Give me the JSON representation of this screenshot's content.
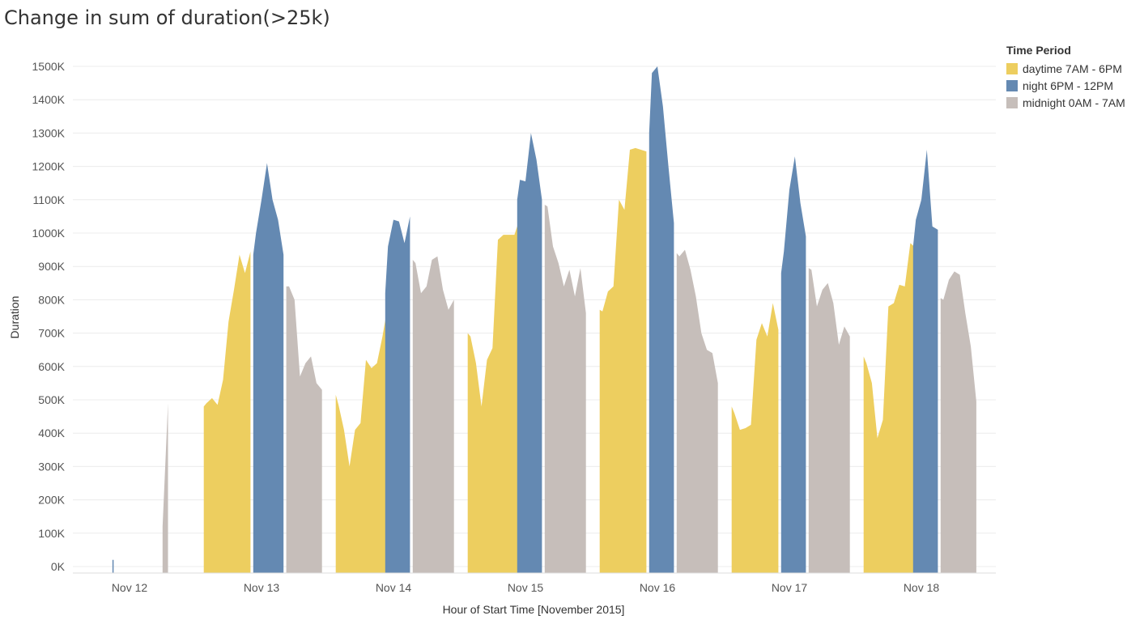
{
  "chart_data": {
    "type": "area",
    "title": "Change in sum of duration(>25k)",
    "xlabel": "Hour of Start Time [November 2015]",
    "ylabel": "Duration",
    "ylim": [
      0,
      1500000
    ],
    "yticks": [
      0,
      100000,
      200000,
      300000,
      400000,
      500000,
      600000,
      700000,
      800000,
      900000,
      1000000,
      1100000,
      1200000,
      1300000,
      1400000,
      1500000
    ],
    "ytick_labels": [
      "0K",
      "100K",
      "200K",
      "300K",
      "400K",
      "500K",
      "600K",
      "700K",
      "800K",
      "900K",
      "1000K",
      "1100K",
      "1200K",
      "1300K",
      "1400K",
      "1500K"
    ],
    "xticks": [
      "Nov 12",
      "Nov 13",
      "Nov 14",
      "Nov 15",
      "Nov 16",
      "Nov 17",
      "Nov 18"
    ],
    "x_unit": "hours since Nov 12 00:00",
    "grid": true,
    "legend_title": "Time Period",
    "legend_position": "top-right",
    "series": [
      {
        "name": "daytime 7AM - 6PM",
        "color": "#EDCE5F",
        "segments": [
          [
            [
              13.5,
              480000
            ],
            [
              14,
              490000
            ],
            [
              15,
              505000
            ],
            [
              16,
              485000
            ],
            [
              17,
              560000
            ],
            [
              18,
              735000
            ],
            [
              19,
              830000
            ],
            [
              20,
              935000
            ],
            [
              21,
              880000
            ],
            [
              22,
              945000
            ]
          ],
          [
            [
              37.5,
              515000
            ],
            [
              38,
              485000
            ],
            [
              39,
              410000
            ],
            [
              40,
              300000
            ],
            [
              41,
              410000
            ],
            [
              42,
              430000
            ],
            [
              43,
              620000
            ],
            [
              44,
              595000
            ],
            [
              45,
              610000
            ],
            [
              46,
              690000
            ],
            [
              47,
              785000
            ]
          ],
          [
            [
              61.5,
              700000
            ],
            [
              62,
              690000
            ],
            [
              63,
              610000
            ],
            [
              64,
              480000
            ],
            [
              65,
              620000
            ],
            [
              66,
              655000
            ],
            [
              67,
              980000
            ],
            [
              68,
              995000
            ],
            [
              69,
              995000
            ],
            [
              70,
              995000
            ],
            [
              71,
              1045000
            ]
          ],
          [
            [
              85.5,
              770000
            ],
            [
              86,
              765000
            ],
            [
              87,
              825000
            ],
            [
              88,
              840000
            ],
            [
              89,
              1100000
            ],
            [
              90,
              1070000
            ],
            [
              91,
              1250000
            ],
            [
              92,
              1255000
            ],
            [
              93,
              1250000
            ],
            [
              94,
              1245000
            ]
          ],
          [
            [
              109.5,
              480000
            ],
            [
              110,
              460000
            ],
            [
              111,
              410000
            ],
            [
              112,
              415000
            ],
            [
              113,
              425000
            ],
            [
              114,
              680000
            ],
            [
              115,
              730000
            ],
            [
              116,
              690000
            ],
            [
              117,
              790000
            ],
            [
              118,
              710000
            ]
          ],
          [
            [
              133.5,
              630000
            ],
            [
              134,
              610000
            ],
            [
              135,
              550000
            ],
            [
              136,
              385000
            ],
            [
              137,
              440000
            ],
            [
              138,
              780000
            ],
            [
              139,
              790000
            ],
            [
              140,
              845000
            ],
            [
              141,
              840000
            ],
            [
              142,
              970000
            ],
            [
              143,
              955000
            ]
          ]
        ]
      },
      {
        "name": "night 6PM - 12PM",
        "color": "#6489B2",
        "segments": [
          [
            [
              -3,
              20000
            ],
            [
              -3,
              0
            ]
          ],
          [
            [
              22.5,
              935000
            ],
            [
              23,
              1000000
            ],
            [
              24,
              1100000
            ],
            [
              25,
              1210000
            ],
            [
              26,
              1100000
            ],
            [
              27,
              1040000
            ],
            [
              28,
              935000
            ]
          ],
          [
            [
              46.5,
              820000
            ],
            [
              47,
              960000
            ],
            [
              48,
              1040000
            ],
            [
              49,
              1035000
            ],
            [
              50,
              970000
            ],
            [
              51,
              1050000
            ]
          ],
          [
            [
              70.5,
              1100000
            ],
            [
              71,
              1160000
            ],
            [
              72,
              1155000
            ],
            [
              73,
              1300000
            ],
            [
              74,
              1220000
            ],
            [
              75,
              1100000
            ]
          ],
          [
            [
              94.5,
              1300000
            ],
            [
              95,
              1480000
            ],
            [
              96,
              1500000
            ],
            [
              97,
              1380000
            ],
            [
              98,
              1200000
            ],
            [
              99,
              1030000
            ]
          ],
          [
            [
              118.5,
              880000
            ],
            [
              119,
              945000
            ],
            [
              120,
              1130000
            ],
            [
              121,
              1230000
            ],
            [
              122,
              1090000
            ],
            [
              123,
              990000
            ]
          ],
          [
            [
              142.5,
              960000
            ],
            [
              143,
              1040000
            ],
            [
              144,
              1100000
            ],
            [
              145,
              1250000
            ],
            [
              146,
              1020000
            ],
            [
              147,
              1010000
            ]
          ]
        ]
      },
      {
        "name": "midnight 0AM - 7AM",
        "color": "#C6BEBA",
        "segments": [
          [
            [
              6,
              120000
            ],
            [
              7,
              490000
            ]
          ],
          [
            [
              28.5,
              840000
            ],
            [
              29,
              840000
            ],
            [
              30,
              800000
            ],
            [
              31,
              570000
            ],
            [
              32,
              610000
            ],
            [
              33,
              630000
            ],
            [
              34,
              550000
            ],
            [
              35,
              530000
            ]
          ],
          [
            [
              51.5,
              920000
            ],
            [
              52,
              910000
            ],
            [
              53,
              820000
            ],
            [
              54,
              840000
            ],
            [
              55,
              920000
            ],
            [
              56,
              930000
            ],
            [
              57,
              830000
            ],
            [
              58,
              770000
            ],
            [
              59,
              800000
            ]
          ],
          [
            [
              75.5,
              1085000
            ],
            [
              76,
              1080000
            ],
            [
              77,
              960000
            ],
            [
              78,
              910000
            ],
            [
              79,
              840000
            ],
            [
              80,
              890000
            ],
            [
              81,
              810000
            ],
            [
              82,
              895000
            ],
            [
              83,
              760000
            ]
          ],
          [
            [
              99.5,
              940000
            ],
            [
              100,
              930000
            ],
            [
              101,
              950000
            ],
            [
              102,
              890000
            ],
            [
              103,
              810000
            ],
            [
              104,
              700000
            ],
            [
              105,
              650000
            ],
            [
              106,
              640000
            ],
            [
              107,
              550000
            ]
          ],
          [
            [
              123.5,
              895000
            ],
            [
              124,
              890000
            ],
            [
              125,
              780000
            ],
            [
              126,
              830000
            ],
            [
              127,
              850000
            ],
            [
              128,
              790000
            ],
            [
              129,
              665000
            ],
            [
              130,
              720000
            ],
            [
              131,
              690000
            ]
          ],
          [
            [
              147.5,
              805000
            ],
            [
              148,
              800000
            ],
            [
              149,
              860000
            ],
            [
              150,
              885000
            ],
            [
              151,
              875000
            ],
            [
              152,
              760000
            ],
            [
              153,
              660000
            ],
            [
              154,
              495000
            ]
          ]
        ]
      }
    ]
  }
}
